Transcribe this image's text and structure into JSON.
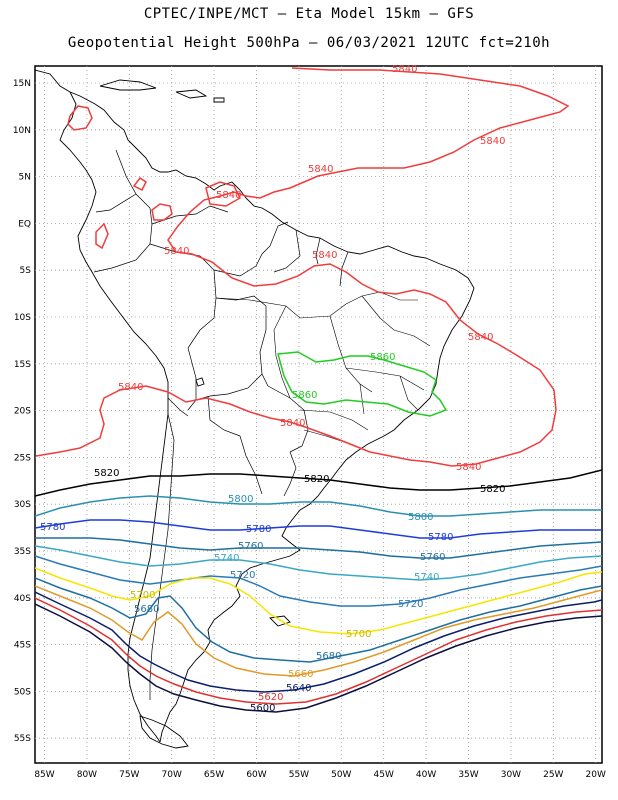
{
  "header": {
    "line1": "CPTEC/INPE/MCT –  Eta Model 15km – GFS",
    "line2": "Geopotential Height 500hPa – 06/03/2021 12UTC fct=210h"
  },
  "axes": {
    "lat_labels": [
      "15N",
      "10N",
      "5N",
      "EQ",
      "5S",
      "10S",
      "15S",
      "20S",
      "25S",
      "30S",
      "35S",
      "40S",
      "45S",
      "50S",
      "55S"
    ],
    "lon_labels": [
      "85W",
      "80W",
      "75W",
      "70W",
      "65W",
      "60W",
      "55W",
      "50W",
      "45W",
      "40W",
      "35W",
      "30W",
      "25W",
      "20W"
    ]
  },
  "map_data": {
    "type": "contour",
    "extent": {
      "lon": [
        -85.5,
        -20
      ],
      "lat": [
        -58.5,
        16.5
      ]
    },
    "contours": [
      {
        "value": 5840,
        "color": "#f03c3c",
        "label": "5840"
      },
      {
        "value": 5860,
        "color": "#22cc22",
        "label": "5860"
      },
      {
        "value": 5820,
        "color": "#000000",
        "label": "5820"
      },
      {
        "value": 5800,
        "color": "#2a8fb0",
        "label": "5800"
      },
      {
        "value": 5780,
        "color": "#1e3cd8",
        "label": "5780"
      },
      {
        "value": 5760,
        "color": "#1f6fa0",
        "label": "5760"
      },
      {
        "value": 5740,
        "color": "#3aa7c4",
        "label": "5740"
      },
      {
        "value": 5720,
        "color": "#2a7ab5",
        "label": "5720"
      },
      {
        "value": 5700,
        "color": "#f5e600",
        "label": "5700"
      },
      {
        "value": 5680,
        "color": "#1f6fa0",
        "label": "5680"
      },
      {
        "value": 5660,
        "color": "#e09b28",
        "label": "5660"
      },
      {
        "value": 5640,
        "color": "#0a1e6e",
        "label": "5640"
      },
      {
        "value": 5620,
        "color": "#e03030",
        "label": "5620"
      },
      {
        "value": 5600,
        "color": "#0a1040",
        "label": "5600"
      }
    ],
    "label_texts": {
      "l5840": "5840",
      "l5860": "5860",
      "l5820": "5820",
      "l5800": "5800",
      "l5780": "5780",
      "l5760": "5760",
      "l5740": "5740",
      "l5720": "5720",
      "l5700": "5700",
      "l5680": "5680",
      "l5660": "5660",
      "l5640": "5640",
      "l5620": "5620",
      "l5600": "5600"
    }
  }
}
